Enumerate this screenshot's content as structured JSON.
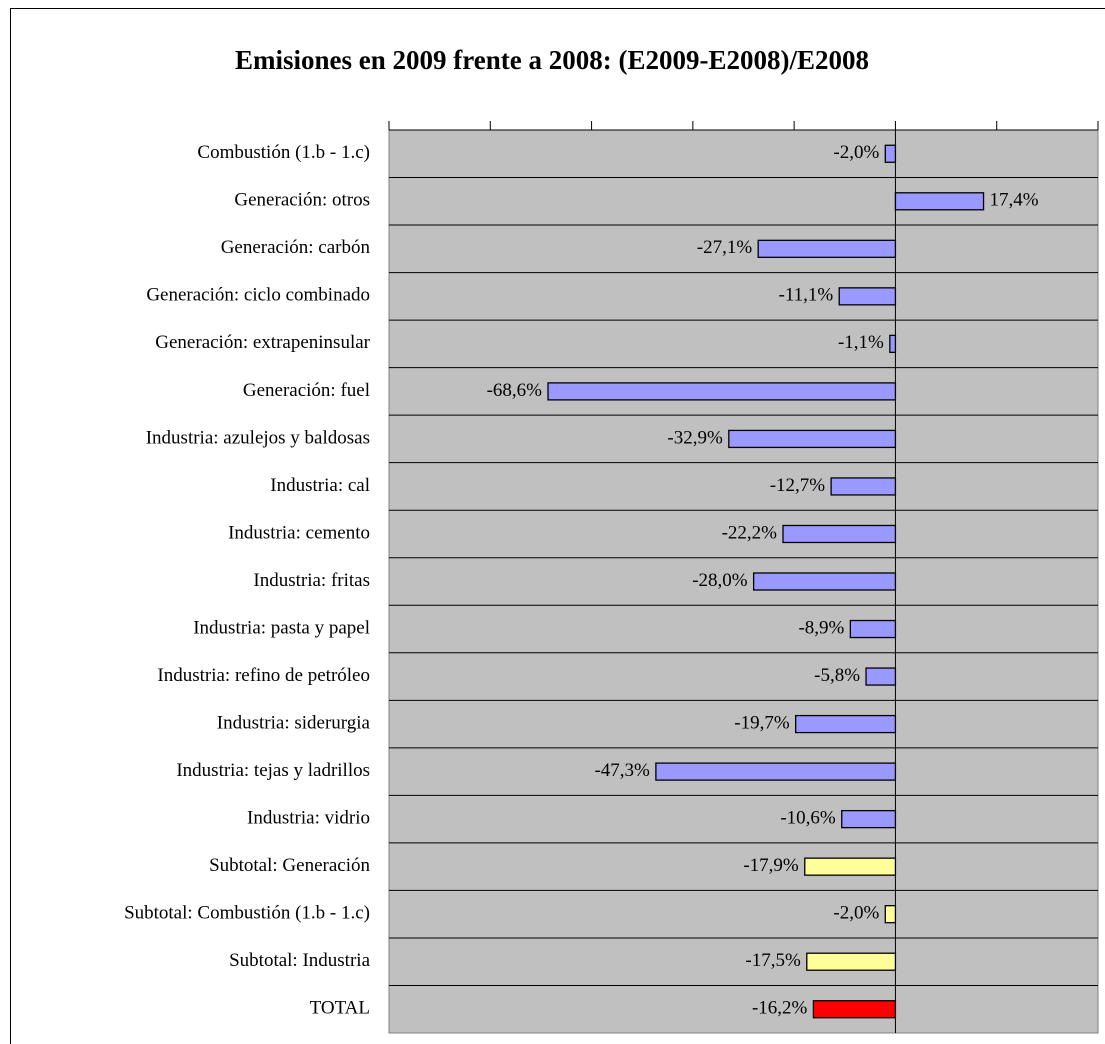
{
  "chart_data": {
    "type": "bar",
    "orientation": "horizontal",
    "title": "Emisiones en 2009 frente a 2008: (E2009-E2008)/E2008",
    "categories": [
      "Combustión (1.b - 1.c)",
      "Generación: otros",
      "Generación: carbón",
      "Generación: ciclo combinado",
      "Generación: extrapeninsular",
      "Generación: fuel",
      "Industria: azulejos y baldosas",
      "Industria: cal",
      "Industria: cemento",
      "Industria: fritas",
      "Industria: pasta y papel",
      "Industria: refino de petróleo",
      "Industria: siderurgia",
      "Industria: tejas y ladrillos",
      "Industria: vidrio",
      "Subtotal: Generación",
      "Subtotal: Combustión (1.b - 1.c)",
      "Subtotal: Industria",
      "TOTAL"
    ],
    "values": [
      -2.0,
      17.4,
      -27.1,
      -11.1,
      -1.1,
      -68.6,
      -32.9,
      -12.7,
      -22.2,
      -28.0,
      -8.9,
      -5.8,
      -19.7,
      -47.3,
      -10.6,
      -17.9,
      -2.0,
      -17.5,
      -16.2
    ],
    "value_labels": [
      "-2,0%",
      "17,4%",
      "-27,1%",
      "-11,1%",
      "-1,1%",
      "-68,6%",
      "-32,9%",
      "-12,7%",
      "-22,2%",
      "-28,0%",
      "-8,9%",
      "-5,8%",
      "-19,7%",
      "-47,3%",
      "-10,6%",
      "-17,9%",
      "-2,0%",
      "-17,5%",
      "-16,2%"
    ],
    "colors": [
      "#9999ff",
      "#9999ff",
      "#9999ff",
      "#9999ff",
      "#9999ff",
      "#9999ff",
      "#9999ff",
      "#9999ff",
      "#9999ff",
      "#9999ff",
      "#9999ff",
      "#9999ff",
      "#9999ff",
      "#9999ff",
      "#9999ff",
      "#ffff99",
      "#ffff99",
      "#ffff99",
      "#ff0000"
    ],
    "xlim": [
      -100,
      40
    ],
    "xticks": [
      -100,
      -80,
      -60,
      -40,
      -20,
      0,
      20,
      40
    ],
    "plot_background": "#c0c0c0"
  }
}
